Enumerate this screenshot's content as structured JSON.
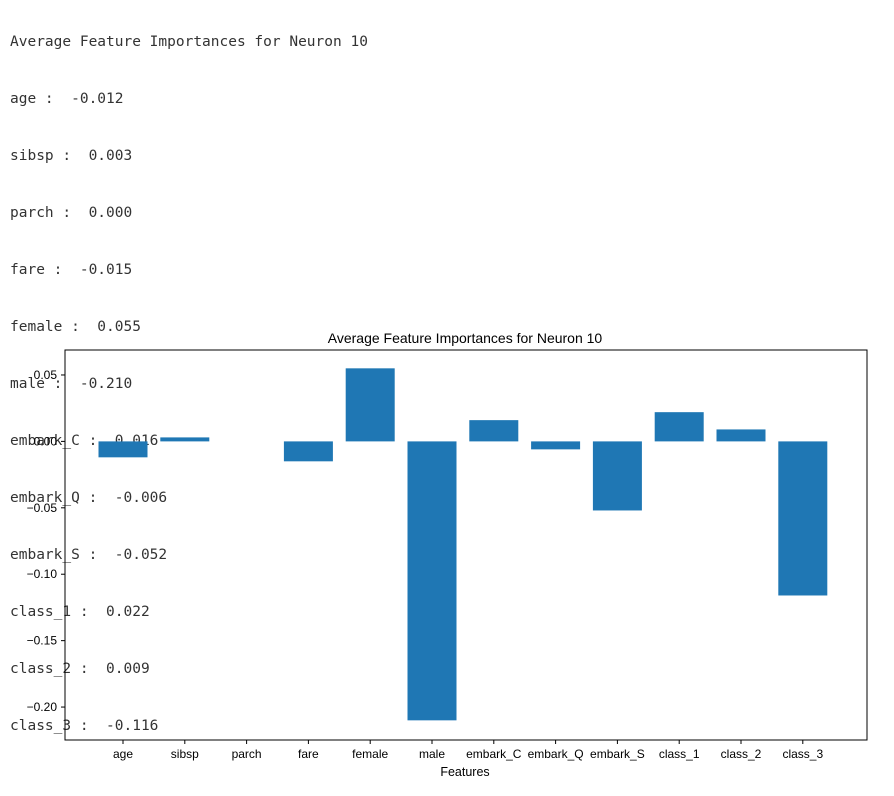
{
  "output": {
    "heading": "Average Feature Importances for Neuron 10",
    "lines": [
      "age :  -0.012",
      "sibsp :  0.003",
      "parch :  0.000",
      "fare :  -0.015",
      "female :  0.055",
      "male :  -0.210",
      "embark_C :  0.016",
      "embark_Q :  -0.006",
      "embark_S :  -0.052",
      "class_1 :  0.022",
      "class_2 :  0.009",
      "class_3 :  -0.116"
    ]
  },
  "chart_data": {
    "type": "bar",
    "title": "Average Feature Importances for Neuron 10",
    "xlabel": "Features",
    "ylabel": "",
    "categories": [
      "age",
      "sibsp",
      "parch",
      "fare",
      "female",
      "male",
      "embark_C",
      "embark_Q",
      "embark_S",
      "class_1",
      "class_2",
      "class_3"
    ],
    "values": [
      -0.012,
      0.003,
      0.0,
      -0.015,
      0.055,
      -0.21,
      0.016,
      -0.006,
      -0.052,
      0.022,
      0.009,
      -0.116
    ],
    "ylim": [
      -0.2248,
      0.0688
    ],
    "yticks": [
      0.05,
      0.0,
      -0.05,
      -0.1,
      -0.15,
      -0.2
    ],
    "ytick_labels": [
      "0.05",
      "0.00",
      "−0.05",
      "−0.10",
      "−0.15",
      "−0.20"
    ],
    "bar_color": "#1f77b4",
    "grid": false,
    "legend": "none"
  }
}
